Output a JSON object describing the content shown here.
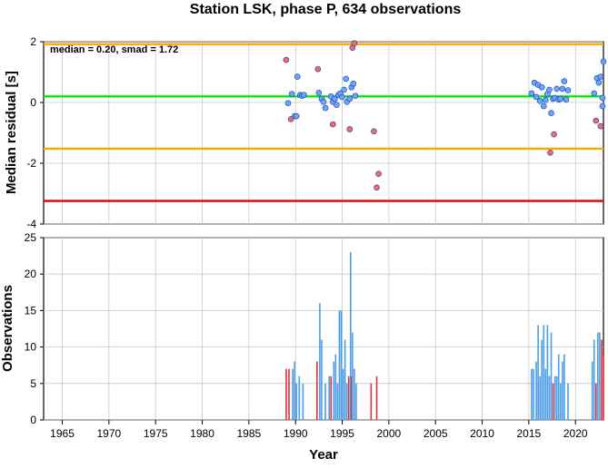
{
  "chart_data": [
    {
      "type": "scatter",
      "title": "Station LSK, phase P, 634 observations",
      "xlabel": "",
      "ylabel": "Median residual [s]",
      "xlim": [
        1963,
        2023
      ],
      "ylim": [
        -4,
        2
      ],
      "grid": true,
      "annotation": "median = 0.20, smad = 1.72",
      "x_ticks": [
        1965,
        1970,
        1975,
        1980,
        1985,
        1990,
        1995,
        2000,
        2005,
        2010,
        2015,
        2020
      ],
      "y_ticks": [
        {
          "value": 2,
          "label": "2"
        },
        {
          "value": 0,
          "label": "0"
        },
        {
          "value": -2,
          "label": "-2"
        },
        {
          "value": -4,
          "label": "-4"
        }
      ],
      "reference_lines": [
        {
          "y": 0.2,
          "color": "#00ee00"
        },
        {
          "y": 1.92,
          "color": "#ffa500"
        },
        {
          "y": -1.52,
          "color": "#ffa500"
        },
        {
          "y": -3.24,
          "color": "#dd0000"
        }
      ],
      "colors": {
        "inlier": "#6aa7f2",
        "outlier": "#f06a6a",
        "edge": "#1a3ab4"
      },
      "series": [
        {
          "kind": "inlier",
          "points": [
            [
              1989.2,
              -0.02
            ],
            [
              1989.6,
              0.28
            ],
            [
              1989.9,
              -0.45
            ],
            [
              1990.1,
              -0.45
            ],
            [
              1990.2,
              0.85
            ],
            [
              1990.5,
              0.25
            ],
            [
              1990.7,
              0.22
            ],
            [
              1990.9,
              0.25
            ],
            [
              1992.5,
              0.32
            ],
            [
              1992.8,
              0.12
            ],
            [
              1993.0,
              0.02
            ],
            [
              1993.2,
              -0.18
            ],
            [
              1993.8,
              0.2
            ],
            [
              1994.0,
              0.02
            ],
            [
              1994.2,
              0.12
            ],
            [
              1994.4,
              -0.08
            ],
            [
              1994.6,
              0.25
            ],
            [
              1994.8,
              0.3
            ],
            [
              1995.0,
              0.18
            ],
            [
              1995.2,
              0.42
            ],
            [
              1995.4,
              0.78
            ],
            [
              1995.5,
              0.02
            ],
            [
              1995.8,
              0.12
            ],
            [
              1996.0,
              0.5
            ],
            [
              1996.2,
              0.62
            ],
            [
              1996.4,
              0.22
            ],
            [
              2015.3,
              0.3
            ],
            [
              2015.6,
              0.65
            ],
            [
              2015.8,
              0.18
            ],
            [
              2016.0,
              0.58
            ],
            [
              2016.2,
              0.05
            ],
            [
              2016.4,
              0.5
            ],
            [
              2016.6,
              -0.12
            ],
            [
              2016.8,
              0.08
            ],
            [
              2017.0,
              0.28
            ],
            [
              2017.2,
              0.42
            ],
            [
              2017.4,
              -0.35
            ],
            [
              2017.6,
              0.12
            ],
            [
              2017.8,
              0.15
            ],
            [
              2018.0,
              0.45
            ],
            [
              2018.2,
              0.1
            ],
            [
              2018.4,
              0.12
            ],
            [
              2018.6,
              0.45
            ],
            [
              2018.8,
              0.7
            ],
            [
              2019.0,
              0.1
            ],
            [
              2019.2,
              0.4
            ],
            [
              2022.0,
              0.3
            ],
            [
              2022.3,
              0.8
            ],
            [
              2022.5,
              0.65
            ],
            [
              2022.7,
              0.85
            ],
            [
              2022.9,
              0.15
            ],
            [
              2022.9,
              -0.12
            ],
            [
              2023.0,
              1.35
            ]
          ]
        },
        {
          "kind": "outlier",
          "points": [
            [
              1989.0,
              1.4
            ],
            [
              1989.5,
              -0.55
            ],
            [
              1992.4,
              1.1
            ],
            [
              1994.0,
              -0.72
            ],
            [
              1995.8,
              -0.88
            ],
            [
              1996.1,
              1.8
            ],
            [
              1996.3,
              1.95
            ],
            [
              1998.4,
              -0.95
            ],
            [
              1998.7,
              -2.8
            ],
            [
              1998.9,
              -2.35
            ],
            [
              2017.3,
              -1.65
            ],
            [
              2017.7,
              -1.05
            ],
            [
              2022.2,
              -0.6
            ],
            [
              2022.7,
              -0.78
            ]
          ]
        }
      ]
    },
    {
      "type": "bar",
      "xlabel": "Year",
      "ylabel": "Observations",
      "xlim": [
        1963,
        2023
      ],
      "ylim": [
        0,
        25
      ],
      "grid": true,
      "x_ticks": [
        1965,
        1970,
        1975,
        1980,
        1985,
        1990,
        1995,
        2000,
        2005,
        2010,
        2015,
        2020
      ],
      "y_ticks": [
        0,
        5,
        10,
        15,
        20,
        25
      ],
      "colors": {
        "normal": "#4a9de8",
        "outlier": "#e0323c"
      },
      "bars": [
        {
          "x": 1989.0,
          "v": 7,
          "kind": "outlier"
        },
        {
          "x": 1989.3,
          "v": 7,
          "kind": "outlier"
        },
        {
          "x": 1989.7,
          "v": 7,
          "kind": "normal"
        },
        {
          "x": 1989.9,
          "v": 8,
          "kind": "normal"
        },
        {
          "x": 1990.1,
          "v": 5,
          "kind": "normal"
        },
        {
          "x": 1990.4,
          "v": 6,
          "kind": "normal"
        },
        {
          "x": 1990.8,
          "v": 5,
          "kind": "normal"
        },
        {
          "x": 1992.3,
          "v": 8,
          "kind": "outlier"
        },
        {
          "x": 1992.6,
          "v": 16,
          "kind": "normal"
        },
        {
          "x": 1992.8,
          "v": 11,
          "kind": "normal"
        },
        {
          "x": 1993.2,
          "v": 5,
          "kind": "normal"
        },
        {
          "x": 1993.6,
          "v": 6,
          "kind": "normal"
        },
        {
          "x": 1993.8,
          "v": 6,
          "kind": "outlier"
        },
        {
          "x": 1994.1,
          "v": 8,
          "kind": "normal"
        },
        {
          "x": 1994.3,
          "v": 9,
          "kind": "normal"
        },
        {
          "x": 1994.5,
          "v": 5,
          "kind": "normal"
        },
        {
          "x": 1994.7,
          "v": 15,
          "kind": "normal"
        },
        {
          "x": 1994.9,
          "v": 15,
          "kind": "normal"
        },
        {
          "x": 1995.1,
          "v": 7,
          "kind": "normal"
        },
        {
          "x": 1995.3,
          "v": 11,
          "kind": "normal"
        },
        {
          "x": 1995.5,
          "v": 5,
          "kind": "normal"
        },
        {
          "x": 1995.7,
          "v": 6,
          "kind": "outlier"
        },
        {
          "x": 1995.9,
          "v": 23,
          "kind": "normal"
        },
        {
          "x": 1996.0,
          "v": 6,
          "kind": "outlier"
        },
        {
          "x": 1996.1,
          "v": 12,
          "kind": "normal"
        },
        {
          "x": 1996.3,
          "v": 7,
          "kind": "normal"
        },
        {
          "x": 1996.5,
          "v": 5,
          "kind": "normal"
        },
        {
          "x": 1998.1,
          "v": 5,
          "kind": "outlier"
        },
        {
          "x": 1998.7,
          "v": 6,
          "kind": "outlier"
        },
        {
          "x": 2015.3,
          "v": 7,
          "kind": "normal"
        },
        {
          "x": 2015.5,
          "v": 7,
          "kind": "normal"
        },
        {
          "x": 2015.8,
          "v": 8,
          "kind": "normal"
        },
        {
          "x": 2016.0,
          "v": 13,
          "kind": "normal"
        },
        {
          "x": 2016.2,
          "v": 6,
          "kind": "normal"
        },
        {
          "x": 2016.4,
          "v": 11,
          "kind": "normal"
        },
        {
          "x": 2016.6,
          "v": 13,
          "kind": "normal"
        },
        {
          "x": 2016.8,
          "v": 7,
          "kind": "normal"
        },
        {
          "x": 2017.0,
          "v": 13,
          "kind": "normal"
        },
        {
          "x": 2017.2,
          "v": 6,
          "kind": "normal"
        },
        {
          "x": 2017.4,
          "v": 12,
          "kind": "normal"
        },
        {
          "x": 2017.6,
          "v": 5,
          "kind": "outlier"
        },
        {
          "x": 2017.8,
          "v": 6,
          "kind": "normal"
        },
        {
          "x": 2018.0,
          "v": 6,
          "kind": "normal"
        },
        {
          "x": 2018.2,
          "v": 9,
          "kind": "normal"
        },
        {
          "x": 2018.4,
          "v": 5,
          "kind": "normal"
        },
        {
          "x": 2018.6,
          "v": 8,
          "kind": "normal"
        },
        {
          "x": 2018.8,
          "v": 9,
          "kind": "normal"
        },
        {
          "x": 2019.2,
          "v": 5,
          "kind": "normal"
        },
        {
          "x": 2021.8,
          "v": 8,
          "kind": "normal"
        },
        {
          "x": 2022.0,
          "v": 11,
          "kind": "normal"
        },
        {
          "x": 2022.2,
          "v": 5,
          "kind": "outlier"
        },
        {
          "x": 2022.4,
          "v": 12,
          "kind": "normal"
        },
        {
          "x": 2022.6,
          "v": 12,
          "kind": "normal"
        },
        {
          "x": 2022.8,
          "v": 11,
          "kind": "outlier"
        },
        {
          "x": 2023.0,
          "v": 9,
          "kind": "outlier"
        }
      ]
    }
  ]
}
